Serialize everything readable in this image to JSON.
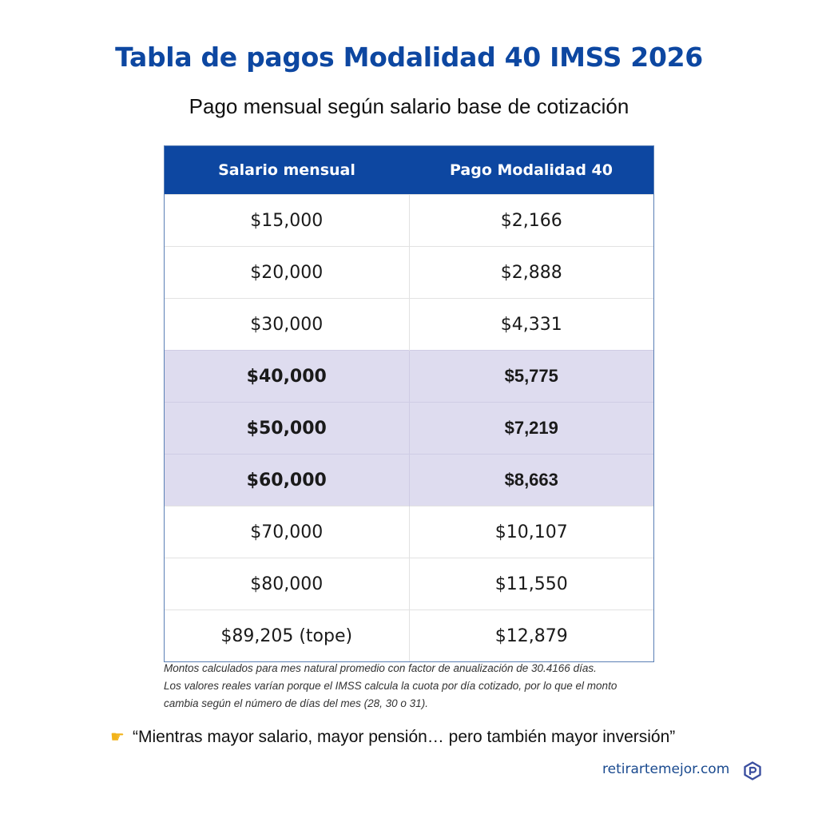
{
  "header": {
    "title": "Tabla de pagos Modalidad 40 IMSS 2026",
    "subtitle": "Pago mensual según salario base de cotización"
  },
  "table": {
    "columns": [
      "Salario mensual",
      "Pago Modalidad 40"
    ],
    "rows": [
      {
        "salario": "$15,000",
        "pago": "$2,166",
        "highlight": false
      },
      {
        "salario": "$20,000",
        "pago": "$2,888",
        "highlight": false
      },
      {
        "salario": "$30,000",
        "pago": "$4,331",
        "highlight": false
      },
      {
        "salario": "$40,000",
        "pago": "$5,775",
        "highlight": true
      },
      {
        "salario": "$50,000",
        "pago": "$7,219",
        "highlight": true
      },
      {
        "salario": "$60,000",
        "pago": "$8,663",
        "highlight": true
      },
      {
        "salario": "$70,000",
        "pago": "$10,107",
        "highlight": false
      },
      {
        "salario": "$80,000",
        "pago": "$11,550",
        "highlight": false
      },
      {
        "salario": "$89,205 (tope)",
        "pago": "$12,879",
        "highlight": false
      }
    ]
  },
  "notes": {
    "line1": "Montos calculados para mes natural promedio con factor de anualización de 30.4166 días.",
    "line2": "Los valores reales varían porque el IMSS calcula la cuota por día cotizado, por lo que el monto",
    "line3": "cambia según el número de días del mes (28, 30 o 31)."
  },
  "quote": {
    "icon": "pointing-hand-icon",
    "text": "“Mientras mayor salario, mayor pensión… pero también mayor inversión”"
  },
  "footer": {
    "site": "retirartemejor.com",
    "logo_icon": "brand-logo-icon"
  },
  "colors": {
    "title": "#0d47a1",
    "header_bg": "#0d47a1",
    "highlight_bg": "#dedcef",
    "site_text": "#1a4a8f"
  }
}
